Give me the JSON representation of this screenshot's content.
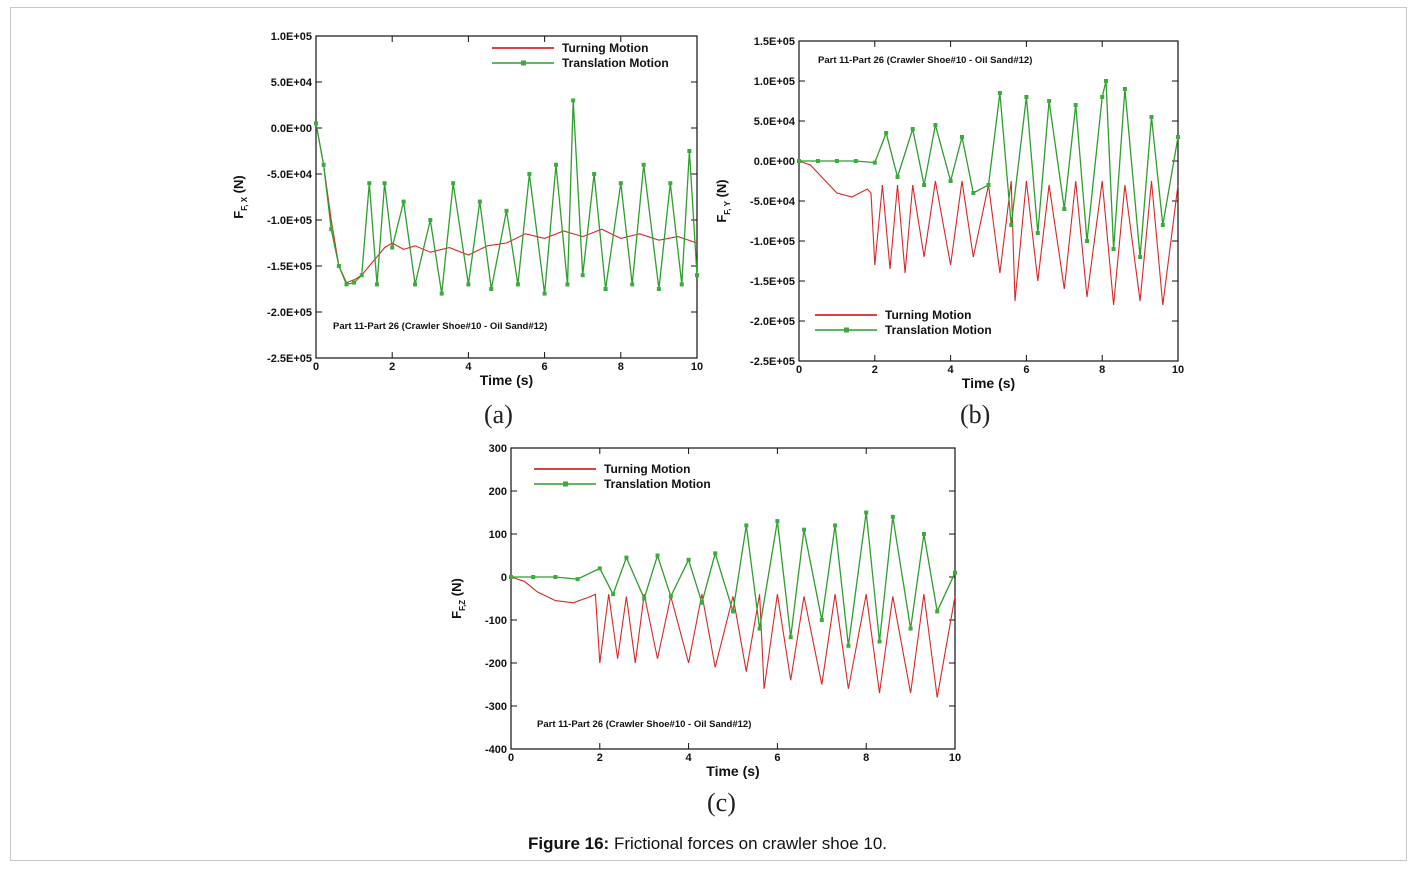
{
  "caption": {
    "prefix": "Figure 16:",
    "text": " Frictional forces on crawler shoe 10."
  },
  "colors": {
    "turning": "#d62828",
    "translation": "#2e9e2e",
    "marker": "#3cab3c"
  },
  "chart_data": [
    {
      "id": "a",
      "panel_label": "(a)",
      "type": "line",
      "xlabel": "Time (s)",
      "ylabel_main": "F",
      "ylabel_sub": "F, X",
      "ylabel_unit": " (N)",
      "xlim": [
        0,
        10
      ],
      "ylim": [
        -250000,
        100000
      ],
      "xticks": [
        0,
        2,
        4,
        6,
        8,
        10
      ],
      "xtick_labels": [
        "0",
        "2",
        "4",
        "6",
        "8",
        "10"
      ],
      "yticks": [
        100000,
        50000,
        0,
        -50000,
        -100000,
        -150000,
        -200000,
        -250000
      ],
      "ytick_labels": [
        "1.0E+05",
        "5.0E+04",
        "0.0E+00",
        "-5.0E+04",
        "-1.0E+05",
        "-1.5E+05",
        "-2.0E+05",
        "-2.5E+05"
      ],
      "annotation": "Part 11-Part 26 (Crawler Shoe#10 - Oil Sand#12)",
      "legend_position": "top-right",
      "series": [
        {
          "name": "Turning Motion",
          "color": "turning",
          "markers": false,
          "x": [
            0,
            0.2,
            0.4,
            0.6,
            0.8,
            1.0,
            1.2,
            1.4,
            1.6,
            1.8,
            2.0,
            2.3,
            2.6,
            3.0,
            3.5,
            4.0,
            4.5,
            5.0,
            5.5,
            6.0,
            6.5,
            7.0,
            7.5,
            8.0,
            8.5,
            9.0,
            9.5,
            10.0
          ],
          "y": [
            5000,
            -40000,
            -100000,
            -150000,
            -168000,
            -165000,
            -160000,
            -150000,
            -140000,
            -130000,
            -125000,
            -132000,
            -128000,
            -135000,
            -130000,
            -138000,
            -128000,
            -125000,
            -115000,
            -120000,
            -112000,
            -118000,
            -110000,
            -120000,
            -115000,
            -122000,
            -118000,
            -125000
          ]
        },
        {
          "name": "Translation Motion",
          "color": "translation",
          "markers": true,
          "x": [
            0,
            0.2,
            0.4,
            0.6,
            0.8,
            1.0,
            1.2,
            1.4,
            1.6,
            1.8,
            2.0,
            2.3,
            2.6,
            3.0,
            3.3,
            3.6,
            4.0,
            4.3,
            4.6,
            5.0,
            5.3,
            5.6,
            6.0,
            6.3,
            6.6,
            6.75,
            7.0,
            7.3,
            7.6,
            8.0,
            8.3,
            8.6,
            9.0,
            9.3,
            9.6,
            9.8,
            10.0
          ],
          "y": [
            5000,
            -40000,
            -110000,
            -150000,
            -170000,
            -168000,
            -160000,
            -60000,
            -170000,
            -60000,
            -130000,
            -80000,
            -170000,
            -100000,
            -180000,
            -60000,
            -170000,
            -80000,
            -175000,
            -90000,
            -170000,
            -50000,
            -180000,
            -40000,
            -170000,
            30000,
            -160000,
            -50000,
            -175000,
            -60000,
            -170000,
            -40000,
            -175000,
            -60000,
            -170000,
            -25000,
            -160000
          ]
        }
      ]
    },
    {
      "id": "b",
      "panel_label": "(b)",
      "type": "line",
      "xlabel": "Time (s)",
      "ylabel_main": "F",
      "ylabel_sub": "F, Y",
      "ylabel_unit": " (N)",
      "xlim": [
        0,
        10
      ],
      "ylim": [
        -250000,
        150000
      ],
      "xticks": [
        0,
        2,
        4,
        6,
        8,
        10
      ],
      "xtick_labels": [
        "0",
        "2",
        "4",
        "6",
        "8",
        "10"
      ],
      "yticks": [
        150000,
        100000,
        50000,
        0,
        -50000,
        -100000,
        -150000,
        -200000,
        -250000
      ],
      "ytick_labels": [
        "1.5E+05",
        "1.0E+05",
        "5.0E+04",
        "0.0E+00",
        "-5.0E+04",
        "-1.0E+05",
        "-1.5E+05",
        "-2.0E+05",
        "-2.5E+05"
      ],
      "annotation": "Part 11-Part 26 (Crawler Shoe#10 - Oil Sand#12)",
      "legend_position": "bottom-left",
      "series": [
        {
          "name": "Turning Motion",
          "color": "turning",
          "markers": false,
          "x": [
            0,
            0.3,
            0.6,
            1.0,
            1.4,
            1.8,
            1.9,
            2.0,
            2.2,
            2.4,
            2.6,
            2.8,
            3.0,
            3.3,
            3.6,
            4.0,
            4.3,
            4.6,
            5.0,
            5.3,
            5.6,
            5.7,
            6.0,
            6.3,
            6.6,
            7.0,
            7.3,
            7.6,
            8.0,
            8.3,
            8.6,
            9.0,
            9.3,
            9.6,
            10.0
          ],
          "y": [
            0,
            -5000,
            -20000,
            -40000,
            -45000,
            -35000,
            -40000,
            -130000,
            -30000,
            -135000,
            -30000,
            -140000,
            -30000,
            -120000,
            -25000,
            -130000,
            -25000,
            -120000,
            -30000,
            -140000,
            -25000,
            -175000,
            -25000,
            -150000,
            -30000,
            -160000,
            -25000,
            -170000,
            -25000,
            -180000,
            -30000,
            -175000,
            -25000,
            -180000,
            -30000
          ]
        },
        {
          "name": "Translation Motion",
          "color": "translation",
          "markers": true,
          "x": [
            0,
            0.5,
            1.0,
            1.5,
            2.0,
            2.3,
            2.6,
            3.0,
            3.3,
            3.6,
            4.0,
            4.3,
            4.6,
            5.0,
            5.3,
            5.6,
            6.0,
            6.3,
            6.6,
            7.0,
            7.3,
            7.6,
            8.0,
            8.1,
            8.3,
            8.6,
            9.0,
            9.3,
            9.6,
            10.0
          ],
          "y": [
            0,
            0,
            0,
            0,
            -2000,
            35000,
            -20000,
            40000,
            -30000,
            45000,
            -25000,
            30000,
            -40000,
            -30000,
            85000,
            -80000,
            80000,
            -90000,
            75000,
            -60000,
            70000,
            -100000,
            80000,
            100000,
            -110000,
            90000,
            -120000,
            55000,
            -80000,
            30000
          ]
        }
      ]
    },
    {
      "id": "c",
      "panel_label": "(c)",
      "type": "line",
      "xlabel": "Time (s)",
      "ylabel_main": "F",
      "ylabel_sub": "F,Z",
      "ylabel_unit": " (N)",
      "xlim": [
        0,
        10
      ],
      "ylim": [
        -400,
        300
      ],
      "xticks": [
        0,
        2,
        4,
        6,
        8,
        10
      ],
      "xtick_labels": [
        "0",
        "2",
        "4",
        "6",
        "8",
        "10"
      ],
      "yticks": [
        300,
        200,
        100,
        0,
        -100,
        -200,
        -300,
        -400
      ],
      "ytick_labels": [
        "300",
        "200",
        "100",
        "0",
        "-100",
        "-200",
        "-300",
        "-400"
      ],
      "annotation": "Part 11-Part 26 (Crawler Shoe#10 - Oil Sand#12)",
      "legend_position": "top-left",
      "series": [
        {
          "name": "Turning Motion",
          "color": "turning",
          "markers": false,
          "x": [
            0,
            0.3,
            0.6,
            1.0,
            1.4,
            1.8,
            1.9,
            2.0,
            2.2,
            2.4,
            2.6,
            2.8,
            3.0,
            3.3,
            3.6,
            4.0,
            4.3,
            4.6,
            5.0,
            5.3,
            5.6,
            5.7,
            6.0,
            6.3,
            6.6,
            7.0,
            7.3,
            7.6,
            8.0,
            8.3,
            8.6,
            9.0,
            9.3,
            9.6,
            10.0
          ],
          "y": [
            0,
            -10,
            -35,
            -55,
            -60,
            -45,
            -40,
            -200,
            -40,
            -190,
            -45,
            -200,
            -40,
            -190,
            -45,
            -200,
            -40,
            -210,
            -45,
            -220,
            -40,
            -260,
            -40,
            -240,
            -45,
            -250,
            -40,
            -260,
            -40,
            -270,
            -45,
            -270,
            -40,
            -280,
            -45
          ]
        },
        {
          "name": "Translation Motion",
          "color": "translation",
          "markers": true,
          "x": [
            0,
            0.5,
            1.0,
            1.5,
            2.0,
            2.3,
            2.6,
            3.0,
            3.3,
            3.6,
            4.0,
            4.3,
            4.6,
            5.0,
            5.3,
            5.6,
            6.0,
            6.3,
            6.6,
            7.0,
            7.3,
            7.6,
            8.0,
            8.3,
            8.6,
            9.0,
            9.3,
            9.6,
            10.0
          ],
          "y": [
            0,
            0,
            0,
            -5,
            20,
            -40,
            45,
            -50,
            50,
            -45,
            40,
            -60,
            55,
            -80,
            120,
            -120,
            130,
            -140,
            110,
            -100,
            120,
            -160,
            150,
            -150,
            140,
            -120,
            100,
            -80,
            10
          ]
        }
      ]
    }
  ]
}
